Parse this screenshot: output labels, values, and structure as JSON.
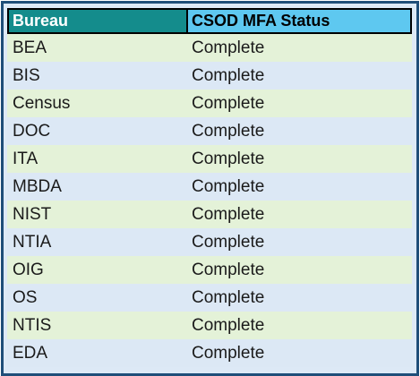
{
  "table": {
    "headers": {
      "bureau": "Bureau",
      "status": "CSOD MFA Status"
    },
    "rows": [
      {
        "bureau": "BEA",
        "status": "Complete"
      },
      {
        "bureau": "BIS",
        "status": "Complete"
      },
      {
        "bureau": "Census",
        "status": "Complete"
      },
      {
        "bureau": "DOC",
        "status": "Complete"
      },
      {
        "bureau": "ITA",
        "status": "Complete"
      },
      {
        "bureau": "MBDA",
        "status": "Complete"
      },
      {
        "bureau": "NIST",
        "status": "Complete"
      },
      {
        "bureau": "NTIA",
        "status": "Complete"
      },
      {
        "bureau": "OIG",
        "status": "Complete"
      },
      {
        "bureau": "OS",
        "status": "Complete"
      },
      {
        "bureau": "NTIS",
        "status": "Complete"
      },
      {
        "bureau": "EDA",
        "status": "Complete"
      }
    ]
  },
  "colors": {
    "frame_border": "#1f4e79",
    "header_bureau_bg": "#148c8c",
    "header_status_bg": "#5ec8f0",
    "row_green": "#e4f2d8",
    "row_blue": "#dce8f5"
  }
}
